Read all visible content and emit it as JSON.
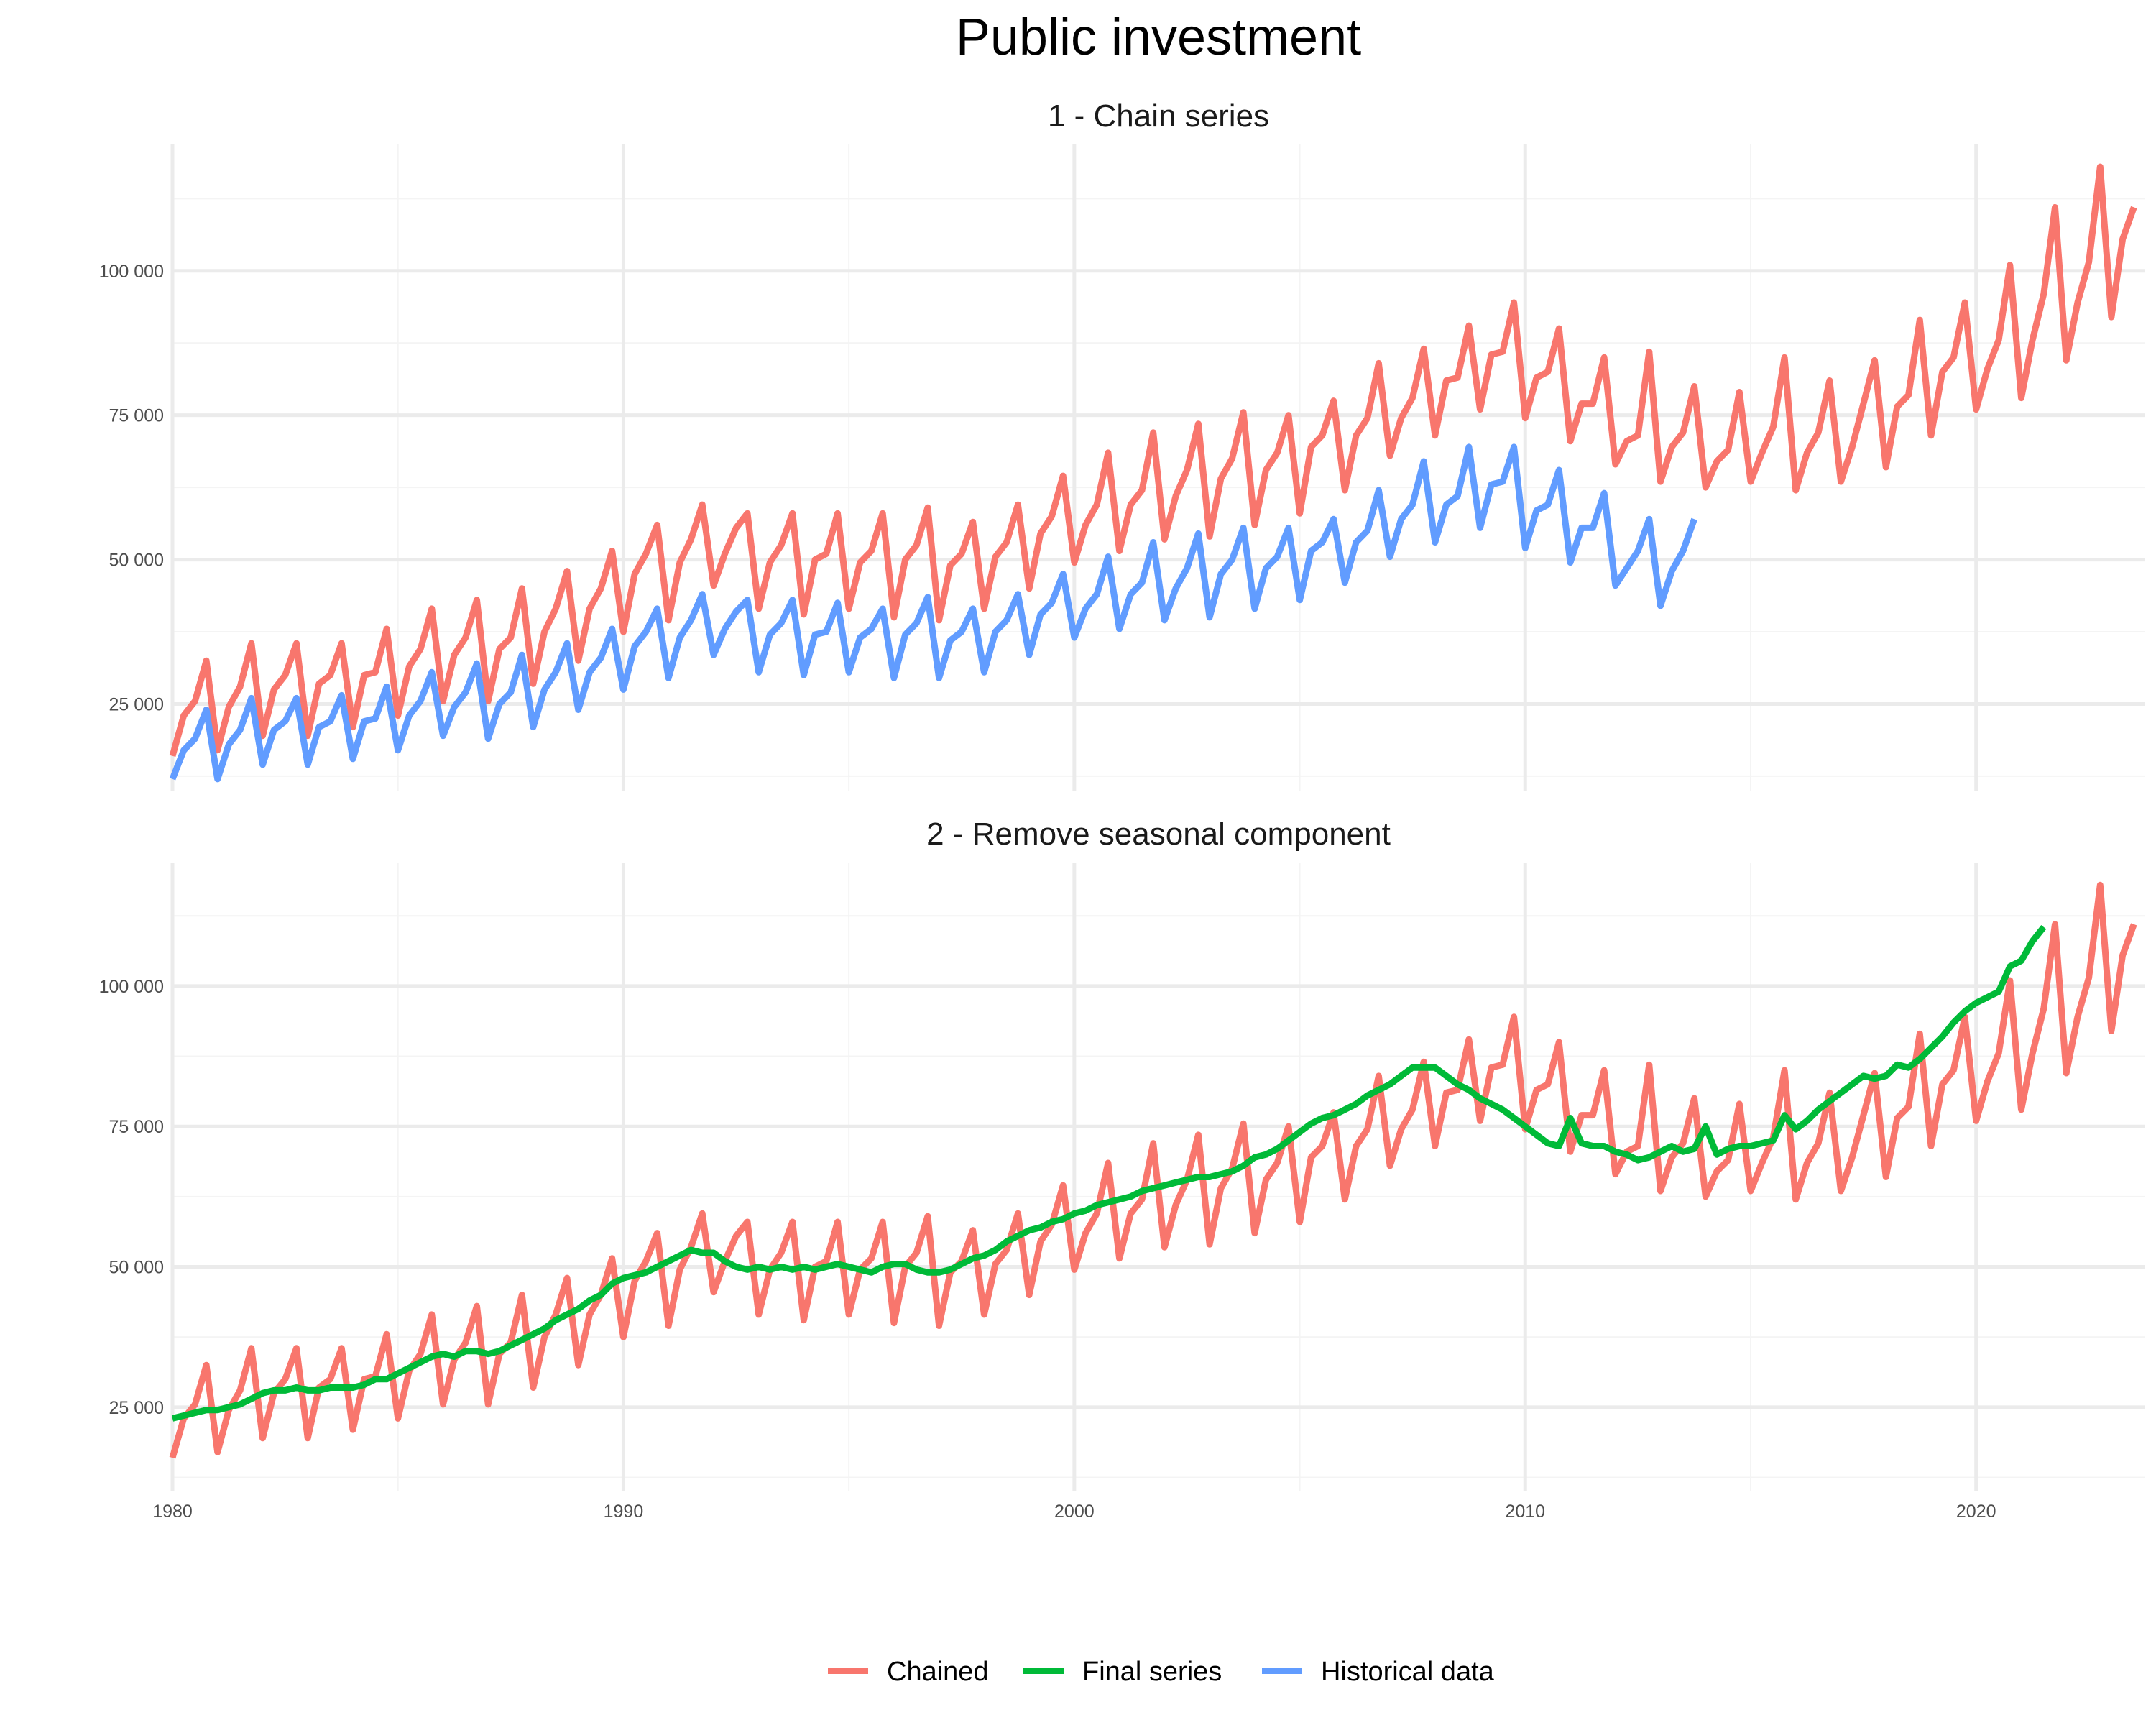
{
  "title": "Public investment",
  "colors": {
    "chained": "#F8766D",
    "final": "#00BA38",
    "historical": "#619CFF",
    "grid_major": "#EBEBEB",
    "grid_minor": "#F4F4F4"
  },
  "legend": [
    "Chained",
    "Final series",
    "Historical data"
  ],
  "chart_data": [
    {
      "type": "line",
      "panel_title": "1 - Chain series",
      "xlim": [
        1980,
        2023.75
      ],
      "ylim": [
        10000,
        122000
      ],
      "x_ticks": [
        1980,
        1990,
        2000,
        2010,
        2020
      ],
      "y_ticks": [
        25000,
        50000,
        75000,
        100000
      ],
      "y_tick_labels": [
        "25 000",
        "50 000",
        "75 000",
        "100 000"
      ],
      "x_tick_labels_visible": false,
      "grid": true,
      "series": [
        {
          "name": "Chained",
          "color": "#F8766D",
          "x_start": 1980,
          "step": 0.25,
          "values": [
            16000,
            23000,
            25500,
            32500,
            17000,
            24500,
            28000,
            35500,
            19500,
            27500,
            30000,
            35500,
            19500,
            28500,
            30000,
            35500,
            21000,
            30000,
            30500,
            38000,
            23000,
            31500,
            34500,
            41500,
            25500,
            33500,
            36500,
            43000,
            25500,
            34500,
            36500,
            45000,
            28500,
            37500,
            41500,
            48000,
            32500,
            41500,
            45000,
            51500,
            37500,
            47500,
            51000,
            56000,
            39500,
            49500,
            53500,
            59500,
            45500,
            51000,
            55500,
            58000,
            41500,
            49500,
            52500,
            58000,
            40500,
            50000,
            51000,
            58000,
            41500,
            49500,
            51500,
            58000,
            40000,
            50000,
            52500,
            59000,
            39500,
            49000,
            51000,
            56500,
            41500,
            50500,
            53000,
            59500,
            45000,
            54500,
            57500,
            64500,
            49500,
            56000,
            59500,
            68500,
            51500,
            59500,
            62000,
            72000,
            53500,
            61000,
            65500,
            73500,
            54000,
            64000,
            67500,
            75500,
            56000,
            65500,
            68500,
            75000,
            58000,
            69500,
            71500,
            77500,
            62000,
            71500,
            74500,
            84000,
            68000,
            74500,
            78000,
            86500,
            71500,
            81000,
            81500,
            90500,
            76000,
            85500,
            86000,
            94500,
            74500,
            81500,
            82500,
            90000,
            70500,
            77000,
            77000,
            85000,
            66500,
            70500,
            71500,
            86000,
            63500,
            69500,
            72000,
            80000,
            62500,
            67000,
            69000,
            79000,
            63500,
            68500,
            73000,
            85000,
            62000,
            68500,
            72000,
            81000,
            63500,
            69500,
            77000,
            84500,
            66000,
            76500,
            78500,
            91500,
            71500,
            82500,
            85000,
            94500,
            76000,
            83000,
            88000,
            101000,
            78000,
            88000,
            96000,
            111000,
            84500,
            94500,
            101500,
            118000,
            92000,
            105500,
            111000
          ]
        },
        {
          "name": "Historical data",
          "color": "#619CFF",
          "x_start": 1980,
          "step": 0.25,
          "values": [
            12000,
            17000,
            19000,
            24000,
            12000,
            18000,
            20500,
            26000,
            14500,
            20500,
            22000,
            26000,
            14500,
            21000,
            22000,
            26500,
            15500,
            22000,
            22500,
            28000,
            17000,
            23000,
            25500,
            30500,
            19500,
            24500,
            27000,
            32000,
            19000,
            25000,
            27000,
            33500,
            21000,
            27500,
            30500,
            35500,
            24000,
            30500,
            33000,
            38000,
            27500,
            35000,
            37500,
            41500,
            29500,
            36500,
            39500,
            44000,
            33500,
            38000,
            41000,
            43000,
            30500,
            37000,
            39000,
            43000,
            30000,
            37000,
            37500,
            42500,
            30500,
            36500,
            38000,
            41500,
            29500,
            37000,
            39000,
            43500,
            29500,
            36000,
            37500,
            41500,
            30500,
            37500,
            39500,
            44000,
            33500,
            40500,
            42500,
            47500,
            36500,
            41500,
            44000,
            50500,
            38000,
            44000,
            46000,
            53000,
            39500,
            45000,
            48500,
            54500,
            40000,
            47500,
            50000,
            55500,
            41500,
            48500,
            50500,
            55500,
            43000,
            51500,
            53000,
            57000,
            46000,
            53000,
            55000,
            62000,
            50500,
            57000,
            59500,
            67000,
            53000,
            59500,
            61000,
            69500,
            55500,
            63000,
            63500,
            69500,
            52000,
            58500,
            59500,
            65500,
            49500,
            55500,
            55500,
            61500,
            45500,
            48500,
            51500,
            57000,
            42000,
            48000,
            51500,
            57000
          ]
        }
      ]
    },
    {
      "type": "line",
      "panel_title": "2 - Remove seasonal component",
      "xlim": [
        1980,
        2023.75
      ],
      "ylim": [
        10000,
        122000
      ],
      "x_ticks": [
        1980,
        1990,
        2000,
        2010,
        2020
      ],
      "x_tick_labels": [
        "1980",
        "1990",
        "2000",
        "2010",
        "2020"
      ],
      "y_ticks": [
        25000,
        50000,
        75000,
        100000
      ],
      "y_tick_labels": [
        "25 000",
        "50 000",
        "75 000",
        "100 000"
      ],
      "grid": true,
      "series": [
        {
          "name": "Chained",
          "color": "#F8766D",
          "same_as": "panel_1_chained"
        },
        {
          "name": "Final series",
          "color": "#00BA38",
          "x_start": 1980,
          "step": 0.25,
          "values": [
            23000,
            23500,
            24000,
            24500,
            24500,
            25000,
            25500,
            26500,
            27500,
            28000,
            28000,
            28500,
            28000,
            28000,
            28500,
            28500,
            28500,
            29000,
            30000,
            30000,
            31000,
            32000,
            33000,
            34000,
            34500,
            34000,
            35000,
            35000,
            34500,
            35000,
            36000,
            37000,
            38000,
            39000,
            40500,
            41500,
            42500,
            44000,
            45000,
            47000,
            48000,
            48500,
            49000,
            50000,
            51000,
            52000,
            53000,
            52500,
            52500,
            51000,
            50000,
            49500,
            50000,
            49500,
            50000,
            49500,
            50000,
            49500,
            50000,
            50500,
            50000,
            49500,
            49000,
            50000,
            50500,
            50500,
            49500,
            49000,
            49000,
            49500,
            50500,
            51500,
            52000,
            53000,
            54500,
            55500,
            56500,
            57000,
            58000,
            58500,
            59500,
            60000,
            61000,
            61500,
            62000,
            62500,
            63500,
            64000,
            64500,
            65000,
            65500,
            66000,
            66000,
            66500,
            67000,
            68000,
            69500,
            70000,
            71000,
            72500,
            74000,
            75500,
            76500,
            77000,
            78000,
            79000,
            80500,
            81500,
            82500,
            84000,
            85500,
            85500,
            85500,
            84000,
            82500,
            81500,
            80000,
            79000,
            78000,
            76500,
            75000,
            73500,
            72000,
            71500,
            76500,
            72000,
            71500,
            71500,
            70500,
            70000,
            69000,
            69500,
            70500,
            71500,
            70500,
            71000,
            75000,
            70000,
            71000,
            71500,
            71500,
            72000,
            72500,
            77000,
            74500,
            76000,
            78000,
            79500,
            81000,
            82500,
            84000,
            83500,
            84000,
            86000,
            85500,
            87000,
            89000,
            91000,
            93500,
            95500,
            97000,
            98000,
            99000,
            103500,
            104500,
            108000,
            110500
          ]
        }
      ]
    }
  ]
}
